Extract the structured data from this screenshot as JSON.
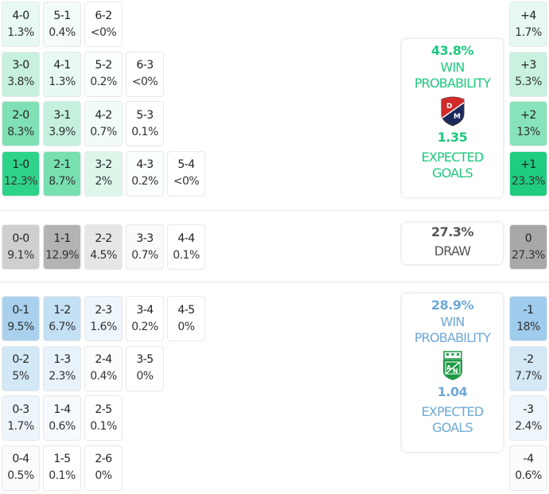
{
  "colors": {
    "home_accent": "#1fc87e",
    "away_accent": "#6fa9d6",
    "draw_accent": "#555555"
  },
  "home": {
    "win_probability": "43.8%",
    "win_label_1": "WIN",
    "win_label_2": "PROBABILITY",
    "crest_icon": "independiente-medellin-crest-icon",
    "expected_goals": "1.35",
    "xg_label_1": "EXPECTED",
    "xg_label_2": "GOALS",
    "scores": [
      {
        "score": "4-0",
        "pct": "1.3%",
        "bg": "#e8f9f1",
        "col": 0,
        "row": 0
      },
      {
        "score": "5-1",
        "pct": "0.4%",
        "bg": "#f3fcf8",
        "col": 1,
        "row": 0
      },
      {
        "score": "6-2",
        "pct": "<0%",
        "bg": "#ffffff",
        "col": 2,
        "row": 0
      },
      {
        "score": "3-0",
        "pct": "3.8%",
        "bg": "#c7f1de",
        "col": 0,
        "row": 1
      },
      {
        "score": "4-1",
        "pct": "1.3%",
        "bg": "#e8f9f1",
        "col": 1,
        "row": 1
      },
      {
        "score": "5-2",
        "pct": "0.2%",
        "bg": "#fafefc",
        "col": 2,
        "row": 1
      },
      {
        "score": "6-3",
        "pct": "<0%",
        "bg": "#ffffff",
        "col": 3,
        "row": 1
      },
      {
        "score": "2-0",
        "pct": "8.3%",
        "bg": "#7fe0b4",
        "col": 0,
        "row": 2
      },
      {
        "score": "3-1",
        "pct": "3.9%",
        "bg": "#c5f0dd",
        "col": 1,
        "row": 2
      },
      {
        "score": "4-2",
        "pct": "0.7%",
        "bg": "#f2fcf7",
        "col": 2,
        "row": 2
      },
      {
        "score": "5-3",
        "pct": "0.1%",
        "bg": "#ffffff",
        "col": 3,
        "row": 2
      },
      {
        "score": "1-0",
        "pct": "12.3%",
        "bg": "#2ed38a",
        "col": 0,
        "row": 3
      },
      {
        "score": "2-1",
        "pct": "8.7%",
        "bg": "#78dfb0",
        "col": 1,
        "row": 3
      },
      {
        "score": "3-2",
        "pct": "2%",
        "bg": "#dcf6ea",
        "col": 2,
        "row": 3
      },
      {
        "score": "4-3",
        "pct": "0.2%",
        "bg": "#fafefc",
        "col": 3,
        "row": 3
      },
      {
        "score": "5-4",
        "pct": "<0%",
        "bg": "#ffffff",
        "col": 4,
        "row": 3
      }
    ],
    "margins": [
      {
        "label": "+4",
        "pct": "1.7%",
        "bg": "#e6f8f0"
      },
      {
        "label": "+3",
        "pct": "5.3%",
        "bg": "#c8f1df"
      },
      {
        "label": "+2",
        "pct": "13%",
        "bg": "#88e3ba"
      },
      {
        "label": "+1",
        "pct": "23.3%",
        "bg": "#1fcc80"
      }
    ]
  },
  "draw": {
    "probability": "27.3%",
    "label": "DRAW",
    "scores": [
      {
        "score": "0-0",
        "pct": "9.1%",
        "bg": "#cfcfcf"
      },
      {
        "score": "1-1",
        "pct": "12.9%",
        "bg": "#b3b3b3"
      },
      {
        "score": "2-2",
        "pct": "4.5%",
        "bg": "#e6e6e6"
      },
      {
        "score": "3-3",
        "pct": "0.7%",
        "bg": "#fafafa"
      },
      {
        "score": "4-4",
        "pct": "0.1%",
        "bg": "#ffffff"
      }
    ],
    "margin": {
      "label": "0",
      "pct": "27.3%",
      "bg": "#a8a8a8"
    }
  },
  "away": {
    "win_probability": "28.9%",
    "win_label_1": "WIN",
    "win_label_2": "PROBABILITY",
    "crest_icon": "atletico-nacional-crest-icon",
    "expected_goals": "1.04",
    "xg_label_1": "EXPECTED",
    "xg_label_2": "GOALS",
    "scores": [
      {
        "score": "0-1",
        "pct": "9.5%",
        "bg": "#a9d1ee",
        "col": 0,
        "row": 0
      },
      {
        "score": "1-2",
        "pct": "6.7%",
        "bg": "#c3dff3",
        "col": 1,
        "row": 0
      },
      {
        "score": "2-3",
        "pct": "1.6%",
        "bg": "#eef5fb",
        "col": 2,
        "row": 0
      },
      {
        "score": "3-4",
        "pct": "0.2%",
        "bg": "#ffffff",
        "col": 3,
        "row": 0
      },
      {
        "score": "4-5",
        "pct": "0%",
        "bg": "#ffffff",
        "col": 4,
        "row": 0
      },
      {
        "score": "0-2",
        "pct": "5%",
        "bg": "#d3e8f6",
        "col": 0,
        "row": 1
      },
      {
        "score": "1-3",
        "pct": "2.3%",
        "bg": "#e7f2fa",
        "col": 1,
        "row": 1
      },
      {
        "score": "2-4",
        "pct": "0.4%",
        "bg": "#fafcfe",
        "col": 2,
        "row": 1
      },
      {
        "score": "3-5",
        "pct": "0%",
        "bg": "#ffffff",
        "col": 3,
        "row": 1
      },
      {
        "score": "0-3",
        "pct": "1.7%",
        "bg": "#edf5fb",
        "col": 0,
        "row": 2
      },
      {
        "score": "1-4",
        "pct": "0.6%",
        "bg": "#f7fafd",
        "col": 1,
        "row": 2
      },
      {
        "score": "2-5",
        "pct": "0.1%",
        "bg": "#ffffff",
        "col": 2,
        "row": 2
      },
      {
        "score": "0-4",
        "pct": "0.5%",
        "bg": "#f9fbfd",
        "col": 0,
        "row": 3
      },
      {
        "score": "1-5",
        "pct": "0.1%",
        "bg": "#ffffff",
        "col": 1,
        "row": 3
      },
      {
        "score": "2-6",
        "pct": "0%",
        "bg": "#ffffff",
        "col": 2,
        "row": 3
      }
    ],
    "margins": [
      {
        "label": "-1",
        "pct": "18%",
        "bg": "#9fcbec"
      },
      {
        "label": "-2",
        "pct": "7.7%",
        "bg": "#d4e8f6"
      },
      {
        "label": "-3",
        "pct": "2.4%",
        "bg": "#eef5fb"
      },
      {
        "label": "-4",
        "pct": "0.6%",
        "bg": "#fafcfe"
      }
    ]
  }
}
